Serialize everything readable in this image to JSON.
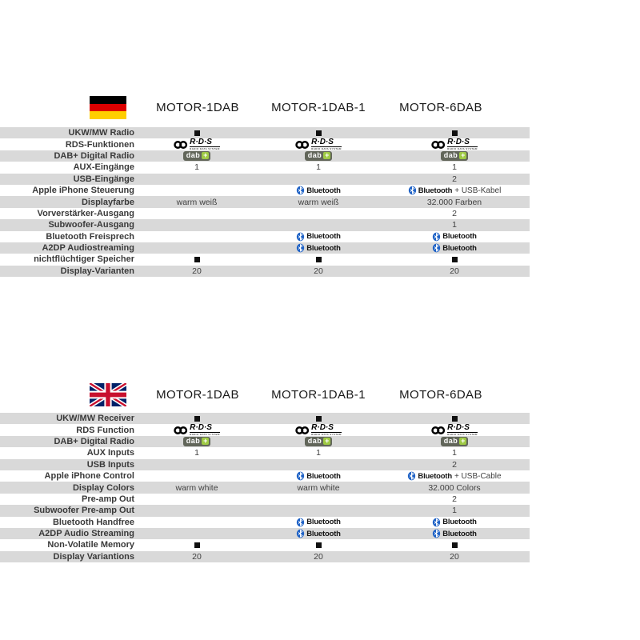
{
  "colors": {
    "row_alt_gray": "#d9d9d9",
    "bluetooth_blue": "#2063c6",
    "dab_badge_bg": "#62665a",
    "dab_plus_green": "#9fca44",
    "flag_de_black": "#000000",
    "flag_de_red": "#dd0000",
    "flag_de_gold": "#ffce00",
    "flag_uk_blue": "#012169",
    "flag_uk_red": "#c8102e"
  },
  "icons": {
    "rds_text": "R·D·S",
    "rds_caption": "RADIO DATA SYSTEM",
    "dab_text": "dab",
    "dab_plus": "+",
    "bluetooth_text": "Bluetooth"
  },
  "tables": [
    {
      "id": "de",
      "flag": "de",
      "headers": [
        "MOTOR-1DAB",
        "MOTOR-1DAB-1",
        "MOTOR-6DAB"
      ],
      "rows": [
        {
          "label": "UKW/MW Radio",
          "cells": [
            {
              "type": "square"
            },
            {
              "type": "square"
            },
            {
              "type": "square"
            }
          ]
        },
        {
          "label": "RDS-Funktionen",
          "cells": [
            {
              "type": "rds"
            },
            {
              "type": "rds"
            },
            {
              "type": "rds"
            }
          ]
        },
        {
          "label": "DAB+ Digital Radio",
          "cells": [
            {
              "type": "dab"
            },
            {
              "type": "dab"
            },
            {
              "type": "dab"
            }
          ]
        },
        {
          "label": "AUX-Eingänge",
          "cells": [
            {
              "type": "text",
              "value": "1"
            },
            {
              "type": "text",
              "value": "1"
            },
            {
              "type": "text",
              "value": "1"
            }
          ]
        },
        {
          "label": "USB-Eingänge",
          "cells": [
            null,
            null,
            {
              "type": "text",
              "value": "2"
            }
          ]
        },
        {
          "label": "Apple iPhone Steuerung",
          "cells": [
            null,
            {
              "type": "bt"
            },
            {
              "type": "bt",
              "suffix": " + USB-Kabel"
            }
          ]
        },
        {
          "label": "Displayfarbe",
          "cells": [
            {
              "type": "text",
              "value": "warm weiß"
            },
            {
              "type": "text",
              "value": "warm weiß"
            },
            {
              "type": "text",
              "value": "32.000 Farben"
            }
          ]
        },
        {
          "label": "Vorverstärker-Ausgang",
          "cells": [
            null,
            null,
            {
              "type": "text",
              "value": "2"
            }
          ]
        },
        {
          "label": "Subwoofer-Ausgang",
          "cells": [
            null,
            null,
            {
              "type": "text",
              "value": "1"
            }
          ]
        },
        {
          "label": "Bluetooth Freisprech",
          "cells": [
            null,
            {
              "type": "bt"
            },
            {
              "type": "bt"
            }
          ]
        },
        {
          "label": "A2DP Audiostreaming",
          "cells": [
            null,
            {
              "type": "bt"
            },
            {
              "type": "bt"
            }
          ]
        },
        {
          "label": "nichtflüchtiger Speicher",
          "cells": [
            {
              "type": "square"
            },
            {
              "type": "square"
            },
            {
              "type": "square"
            }
          ]
        },
        {
          "label": "Display-Varianten",
          "cells": [
            {
              "type": "text",
              "value": "20"
            },
            {
              "type": "text",
              "value": "20"
            },
            {
              "type": "text",
              "value": "20"
            }
          ]
        }
      ]
    },
    {
      "id": "en",
      "flag": "uk",
      "headers": [
        "MOTOR-1DAB",
        "MOTOR-1DAB-1",
        "MOTOR-6DAB"
      ],
      "rows": [
        {
          "label": "UKW/MW Receiver",
          "cells": [
            {
              "type": "square"
            },
            {
              "type": "square"
            },
            {
              "type": "square"
            }
          ]
        },
        {
          "label": "RDS Function",
          "cells": [
            {
              "type": "rds"
            },
            {
              "type": "rds"
            },
            {
              "type": "rds"
            }
          ]
        },
        {
          "label": "DAB+ Digital Radio",
          "cells": [
            {
              "type": "dab"
            },
            {
              "type": "dab"
            },
            {
              "type": "dab"
            }
          ]
        },
        {
          "label": "AUX Inputs",
          "cells": [
            {
              "type": "text",
              "value": "1"
            },
            {
              "type": "text",
              "value": "1"
            },
            {
              "type": "text",
              "value": "1"
            }
          ]
        },
        {
          "label": "USB Inputs",
          "cells": [
            null,
            null,
            {
              "type": "text",
              "value": "2"
            }
          ]
        },
        {
          "label": "Apple iPhone Control",
          "cells": [
            null,
            {
              "type": "bt"
            },
            {
              "type": "bt",
              "suffix": " + USB-Cable"
            }
          ]
        },
        {
          "label": "Display Colors",
          "cells": [
            {
              "type": "text",
              "value": "warm white"
            },
            {
              "type": "text",
              "value": "warm white"
            },
            {
              "type": "text",
              "value": "32.000 Colors"
            }
          ]
        },
        {
          "label": "Pre-amp Out",
          "cells": [
            null,
            null,
            {
              "type": "text",
              "value": "2"
            }
          ]
        },
        {
          "label": "Subwoofer Pre-amp Out",
          "cells": [
            null,
            null,
            {
              "type": "text",
              "value": "1"
            }
          ]
        },
        {
          "label": "Bluetooth Handfree",
          "cells": [
            null,
            {
              "type": "bt"
            },
            {
              "type": "bt"
            }
          ]
        },
        {
          "label": "A2DP Audio Streaming",
          "cells": [
            null,
            {
              "type": "bt"
            },
            {
              "type": "bt"
            }
          ]
        },
        {
          "label": "Non-Volatile Memory",
          "cells": [
            {
              "type": "square"
            },
            {
              "type": "square"
            },
            {
              "type": "square"
            }
          ]
        },
        {
          "label": "Display Variantions",
          "cells": [
            {
              "type": "text",
              "value": "20"
            },
            {
              "type": "text",
              "value": "20"
            },
            {
              "type": "text",
              "value": "20"
            }
          ]
        }
      ]
    }
  ]
}
